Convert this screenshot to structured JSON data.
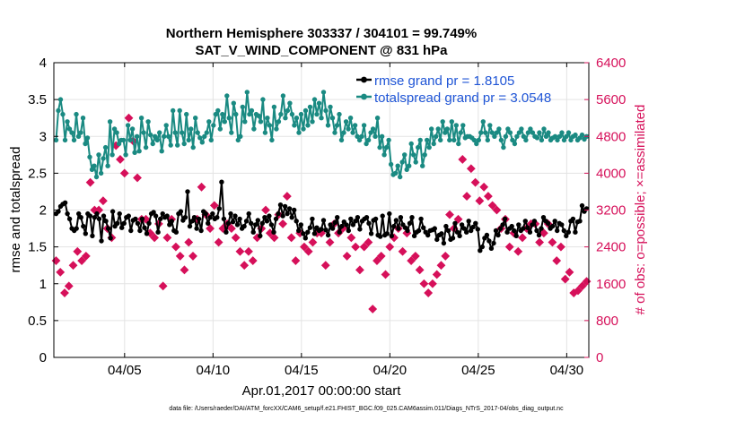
{
  "chart_data": {
    "type": "line",
    "title_line1": "Northern Hemisphere 303337 / 304101 = 99.749%",
    "title_line2": "SAT_V_WIND_COMPONENT @ 831 hPa",
    "xlabel": "Apr.01,2017 00:00:00 start",
    "ylabel_left": "rmse and totalspread",
    "ylabel_right": "# of obs: o=possible; ×=assimilated",
    "x_range": [
      1.0,
      31.25
    ],
    "ylim_left": [
      0,
      4
    ],
    "ylim_right": [
      0,
      6400
    ],
    "x_ticks": [
      5,
      10,
      15,
      20,
      25,
      30
    ],
    "x_tick_labels": [
      "04/05",
      "04/10",
      "04/15",
      "04/20",
      "04/25",
      "04/30"
    ],
    "y_ticks_left": [
      0,
      0.5,
      1,
      1.5,
      2,
      2.5,
      3,
      3.5,
      4
    ],
    "y_tick_labels_left": [
      "0",
      "0.5",
      "1",
      "1.5",
      "2",
      "2.5",
      "3",
      "3.5",
      "4"
    ],
    "y_ticks_right": [
      0,
      800,
      1600,
      2400,
      3200,
      4000,
      4800,
      5600,
      6400
    ],
    "y_tick_labels_right": [
      "0",
      "800",
      "1600",
      "2400",
      "3200",
      "4000",
      "4800",
      "5600",
      "6400"
    ],
    "series": [
      {
        "name": "rmse",
        "legend": "rmse grand pr = 1.8105",
        "color": "#000000",
        "values": [
          1.95,
          1.98,
          2.05,
          2.08,
          2.1,
          1.95,
          1.88,
          1.75,
          1.72,
          1.75,
          1.95,
          1.9,
          1.78,
          1.68,
          1.95,
          1.92,
          1.65,
          1.9,
          1.95,
          1.88,
          1.58,
          1.92,
          1.85,
          1.75,
          1.62,
          1.98,
          1.78,
          1.82,
          1.95,
          1.76,
          1.82,
          1.9,
          1.92,
          1.72,
          1.86,
          1.88,
          1.82,
          1.72,
          1.88,
          1.76,
          1.68,
          1.82,
          1.95,
          1.97,
          1.92,
          1.7,
          1.88,
          1.95,
          1.9,
          1.92,
          1.8,
          1.85,
          1.72,
          1.7,
          1.95,
          1.98,
          1.86,
          1.9,
          2.25,
          1.78,
          1.85,
          1.9,
          1.75,
          1.88,
          1.72,
          1.98,
          1.95,
          1.82,
          1.9,
          1.95,
          1.88,
          1.9,
          2.02,
          2.38,
          1.88,
          1.7,
          1.82,
          1.95,
          1.84,
          1.92,
          1.8,
          1.88,
          1.75,
          1.78,
          1.85,
          1.95,
          1.82,
          1.7,
          1.8,
          1.86,
          1.65,
          1.82,
          1.9,
          1.85,
          1.92,
          1.8,
          1.7,
          1.88,
          1.95,
          2.07,
          1.92,
          2.05,
          1.95,
          2.02,
          1.9,
          2.0,
          1.85,
          1.72,
          1.8,
          1.68,
          1.62,
          1.7,
          1.76,
          1.88,
          1.68,
          1.76,
          1.72,
          1.74,
          1.86,
          1.73,
          1.66,
          1.8,
          1.75,
          1.83,
          1.9,
          1.7,
          1.78,
          1.84,
          1.8,
          1.72,
          1.88,
          1.8,
          1.85,
          1.9,
          1.74,
          1.85,
          1.88,
          1.9,
          1.82,
          1.68,
          1.86,
          1.88,
          1.66,
          1.64,
          1.92,
          1.66,
          1.68,
          1.95,
          1.65,
          1.78,
          1.86,
          1.75,
          1.9,
          1.8,
          1.76,
          1.72,
          1.82,
          1.9,
          1.65,
          1.7,
          1.72,
          1.88,
          1.76,
          1.7,
          1.66,
          1.72,
          1.73,
          1.75,
          1.6,
          1.66,
          1.68,
          1.55,
          1.78,
          1.72,
          1.6,
          1.62,
          1.82,
          1.7,
          1.65,
          1.8,
          1.75,
          1.7,
          1.85,
          1.72,
          1.77,
          1.82,
          1.74,
          1.45,
          1.5,
          1.62,
          1.66,
          1.58,
          1.48,
          1.55,
          1.72,
          1.66,
          1.75,
          1.8,
          1.88,
          1.7,
          1.75,
          1.78,
          1.72,
          1.65,
          1.8,
          1.72,
          1.75,
          1.85,
          1.76,
          1.7,
          1.8,
          1.85,
          1.72,
          1.66,
          1.75,
          1.9,
          1.85,
          1.82,
          1.75,
          1.78,
          1.85,
          1.72,
          1.82,
          1.8,
          1.72,
          1.65,
          1.7,
          1.85,
          1.88,
          1.7,
          1.84,
          1.85,
          2.06,
          1.98,
          2.02
        ]
      },
      {
        "name": "totalspread",
        "legend": "totalspread grand pr = 3.0548",
        "color": "#1a8a82",
        "values": [
          2.95,
          3.35,
          3.5,
          3.3,
          2.95,
          3.2,
          3.1,
          3.05,
          2.95,
          3.3,
          3.0,
          3.05,
          3.25,
          2.9,
          2.98,
          2.72,
          2.55,
          2.6,
          2.45,
          2.75,
          2.5,
          2.7,
          2.85,
          2.6,
          3.2,
          2.75,
          3.1,
          3.05,
          2.9,
          2.95,
          2.95,
          2.75,
          3.15,
          2.95,
          3.1,
          2.78,
          3.0,
          2.8,
          3.25,
          3.05,
          2.85,
          3.2,
          3.02,
          2.9,
          3.0,
          2.95,
          3.05,
          2.8,
          3.0,
          3.15,
          3.0,
          2.88,
          3.35,
          3.05,
          2.88,
          3.35,
          3.05,
          2.9,
          3.3,
          2.95,
          3.1,
          2.85,
          3.25,
          3.05,
          2.98,
          2.92,
          3.0,
          3.05,
          3.2,
          2.95,
          3.15,
          3.3,
          3.35,
          3.1,
          3.3,
          3.2,
          3.55,
          3.25,
          3.05,
          3.45,
          3.3,
          2.95,
          3.0,
          3.4,
          3.2,
          3.6,
          3.3,
          3.35,
          3.1,
          3.3,
          3.28,
          3.2,
          3.5,
          3.05,
          3.25,
          3.15,
          2.95,
          3.4,
          3.1,
          3.2,
          3.3,
          3.55,
          3.25,
          3.35,
          3.45,
          3.3,
          3.15,
          3.25,
          3.05,
          3.3,
          3.1,
          3.35,
          3.15,
          3.4,
          3.2,
          3.5,
          3.3,
          3.45,
          3.25,
          3.6,
          3.35,
          3.15,
          3.4,
          3.25,
          3.05,
          3.15,
          3.3,
          2.95,
          3.05,
          3.2,
          3.1,
          3.25,
          3.05,
          3.15,
          3.0,
          2.95,
          3.0,
          3.15,
          2.9,
          2.95,
          3.05,
          3.1,
          3.0,
          3.25,
          2.85,
          3.0,
          2.75,
          2.85,
          2.95,
          2.62,
          2.48,
          2.5,
          2.6,
          2.45,
          2.65,
          2.75,
          2.55,
          2.6,
          2.9,
          2.75,
          2.65,
          2.85,
          2.95,
          2.6,
          2.75,
          2.95,
          2.85,
          3.1,
          2.9,
          3.0,
          3.1,
          2.95,
          3.2,
          3.05,
          3.1,
          2.95,
          3.2,
          2.95,
          3.15,
          2.9,
          3.05,
          3.15,
          2.98,
          3.0,
          3.0,
          2.98,
          2.95,
          2.9,
          2.95,
          3.05,
          3.2,
          3.05,
          2.95,
          3.15,
          3.05,
          3.0,
          3.05,
          3.1,
          2.95,
          2.85,
          3.0,
          3.1,
          3.05,
          2.95,
          2.9,
          3.0,
          3.05,
          3.1,
          3.0,
          2.95,
          3.05,
          3.1,
          3.05,
          3.0,
          2.98,
          3.05,
          2.95,
          3.1,
          3.0,
          3.05,
          2.95,
          2.98,
          3.0,
          2.95,
          3.0,
          3.05,
          2.95,
          3.0,
          3.05,
          2.95,
          3.0,
          3.02,
          2.95,
          2.98,
          3.02,
          2.96,
          3.0
        ]
      },
      {
        "name": "assimilated",
        "legend": "",
        "color": "#d6105a",
        "values": [
          2100,
          1850,
          1400,
          1550,
          2000,
          2300,
          2100,
          2200,
          3800,
          3200,
          3200,
          3400,
          2800,
          2600,
          4600,
          4300,
          4000,
          5200,
          4700,
          3900,
          3000,
          3000,
          2700,
          2600,
          2900,
          1550,
          2600,
          3000,
          2400,
          2200,
          1900,
          2500,
          2200,
          3000,
          3700,
          3100,
          2800,
          3300,
          2500,
          2800,
          2900,
          2800,
          2600,
          2300,
          2000,
          2300,
          2100,
          2600,
          2800,
          3200,
          2700,
          2600,
          3100,
          2900,
          3500,
          2600,
          2100,
          2700,
          2400,
          2300,
          2500,
          2700,
          2700,
          2000,
          2500,
          2900,
          2700,
          2800,
          2200,
          2600,
          2400,
          1900,
          2400,
          2500,
          1050,
          2100,
          2200,
          1800,
          2400,
          2600,
          2800,
          2300,
          2700,
          2100,
          2200,
          1900,
          1600,
          1400,
          1600,
          1800,
          2000,
          2200,
          3100,
          2800,
          3000,
          4300,
          3500,
          4100,
          3800,
          3400,
          3700,
          3500,
          3300,
          3200,
          2800,
          3000,
          2400,
          2700,
          2300,
          2600,
          2800,
          2900,
          2900,
          2500,
          2700,
          2900,
          2500,
          2100,
          2400,
          1700,
          1850,
          1400,
          1450,
          1550,
          1650
        ]
      }
    ]
  },
  "footer": "data file: /Users/raeder/DAI/ATM_forcXX/CAM6_setup/f.e21.FHIST_BGC.f09_025.CAM6assim.011/Diags_NTrS_2017-04/obs_diag_output.nc"
}
